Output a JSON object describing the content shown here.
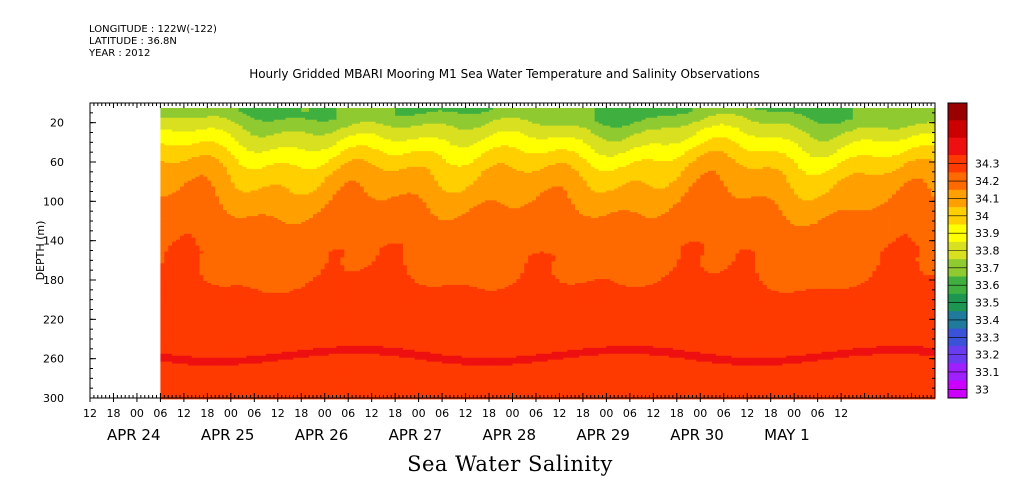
{
  "header": {
    "longitude": "LONGITUDE : 122W(-122)",
    "latitude": "LATITUDE : 36.8N",
    "year": "YEAR : 2012"
  },
  "chart_data": {
    "type": "heatmap",
    "title": "Hourly Gridded MBARI Mooring M1 Sea Water Temperature and Salinity Observations",
    "xlabel": "Sea Water Salinity",
    "ylabel": "DEPTH (m)",
    "ylim": [
      300,
      0
    ],
    "y_ticks": [
      20,
      60,
      100,
      140,
      180,
      220,
      260,
      300
    ],
    "x_range_hours": [
      -12,
      204
    ],
    "x_hour_ticks": [
      "12",
      "18",
      "00",
      "06",
      "12",
      "18",
      "00",
      "06",
      "12",
      "18",
      "00",
      "06",
      "12",
      "18",
      "00",
      "06",
      "12",
      "18",
      "00",
      "06",
      "12",
      "18",
      "00",
      "06",
      "12",
      "18",
      "00",
      "06",
      "12",
      "18",
      "00",
      "06",
      "12"
    ],
    "x_day_labels": [
      "APR 24",
      "APR 25",
      "APR 26",
      "APR 27",
      "APR 28",
      "APR 29",
      "APR 30",
      "MAY  1"
    ],
    "colorbar": {
      "levels": [
        33,
        33.1,
        33.2,
        33.3,
        33.4,
        33.5,
        33.6,
        33.7,
        33.8,
        33.9,
        34,
        34.1,
        34.2,
        34.3
      ],
      "labels": [
        "33",
        "33.1",
        "33.2",
        "33.3",
        "33.4",
        "33.5",
        "33.6",
        "33.7",
        "33.8",
        "33.9",
        "34",
        "34.1",
        "34.2",
        "34.3"
      ],
      "colors": [
        "#cc00ff",
        "#9f1fff",
        "#6a3cf0",
        "#3a52d8",
        "#1f7a9c",
        "#1c9650",
        "#3fb040",
        "#8fca30",
        "#d8e020",
        "#ffff00",
        "#ffcf00",
        "#ffa000",
        "#ff6a00",
        "#ff3a00",
        "#ee1010",
        "#cc0000",
        "#9b0000"
      ]
    },
    "data_start_hour": 6,
    "depth_profile": [
      {
        "depth": 10,
        "salinity": 33.6
      },
      {
        "depth": 25,
        "salinity": 33.72
      },
      {
        "depth": 40,
        "salinity": 33.82
      },
      {
        "depth": 55,
        "salinity": 33.92
      },
      {
        "depth": 70,
        "salinity": 34.0
      },
      {
        "depth": 90,
        "salinity": 34.06
      },
      {
        "depth": 110,
        "salinity": 34.12
      },
      {
        "depth": 130,
        "salinity": 34.16
      },
      {
        "depth": 150,
        "salinity": 34.19
      },
      {
        "depth": 180,
        "salinity": 34.2
      },
      {
        "depth": 210,
        "salinity": 34.21
      },
      {
        "depth": 235,
        "salinity": 34.24
      },
      {
        "depth": 255,
        "salinity": 34.31
      },
      {
        "depth": 275,
        "salinity": 34.27
      },
      {
        "depth": 300,
        "salinity": 34.25
      }
    ]
  }
}
